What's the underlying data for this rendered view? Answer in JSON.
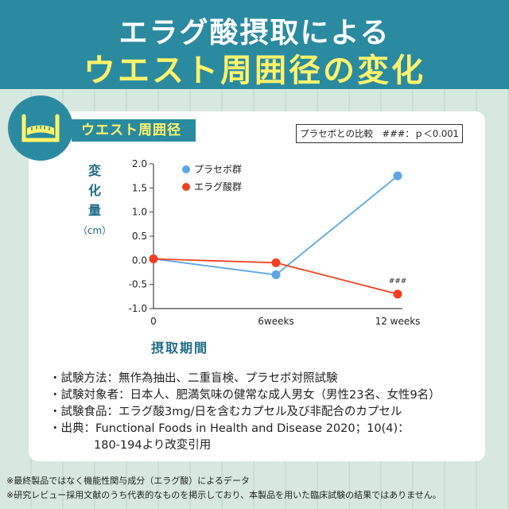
{
  "header": {
    "line1": "エラグ酸摂取による",
    "line2": "ウエスト周囲径の変化"
  },
  "tag_label": "ウエスト周囲径",
  "pvalue_text": "プラセボとの比較　###：ｐ＜0.001",
  "icon": "tape-measure-icon",
  "colors": {
    "accent": "#2a8aa0",
    "highlight": "#fff36b",
    "placebo": "#5aa7e6",
    "ellagic": "#f0401f",
    "axis_text": "#1e6b86"
  },
  "chart_data": {
    "type": "line",
    "ylabel": "変化量",
    "yunit": "（cm）",
    "xlabel": "摂取期間",
    "categories": [
      "0",
      "6weeks",
      "12 weeks"
    ],
    "ylim": [
      -1.0,
      2.0
    ],
    "yticks": [
      "2.0",
      "1.5",
      "1.0",
      "0.5",
      "0.0",
      "-0.5",
      "-1.0"
    ],
    "grid": false,
    "legend_position": "top-left",
    "series": [
      {
        "name": "プラセボ群",
        "color": "#5aa7e6",
        "values": [
          0.03,
          -0.3,
          1.75
        ]
      },
      {
        "name": "エラグ酸群",
        "color": "#f0401f",
        "values": [
          0.03,
          -0.05,
          -0.7
        ]
      }
    ],
    "annotation": {
      "text": "###",
      "series_index": 1,
      "x_index": 2
    }
  },
  "notes": [
    "・試験方法：無作為抽出、二重盲検、プラセボ対照試験",
    "・試験対象者：日本人、肥満気味の健常な成人男女（男性23名、女性9名）",
    "・試験食品：エラグ酸3mg/日を含むカプセル及び非配合のカプセル",
    "・出典：Functional Foods in Health and Disease 2020；10(4)：",
    "180-194より改変引用"
  ],
  "footnotes": [
    "※最終製品ではなく機能性関与成分（エラグ酸）によるデータ",
    "※研究レビュー採用文献のうち代表的なものを掲示しており、本製品を用いた臨床試験の結果ではありません。"
  ]
}
